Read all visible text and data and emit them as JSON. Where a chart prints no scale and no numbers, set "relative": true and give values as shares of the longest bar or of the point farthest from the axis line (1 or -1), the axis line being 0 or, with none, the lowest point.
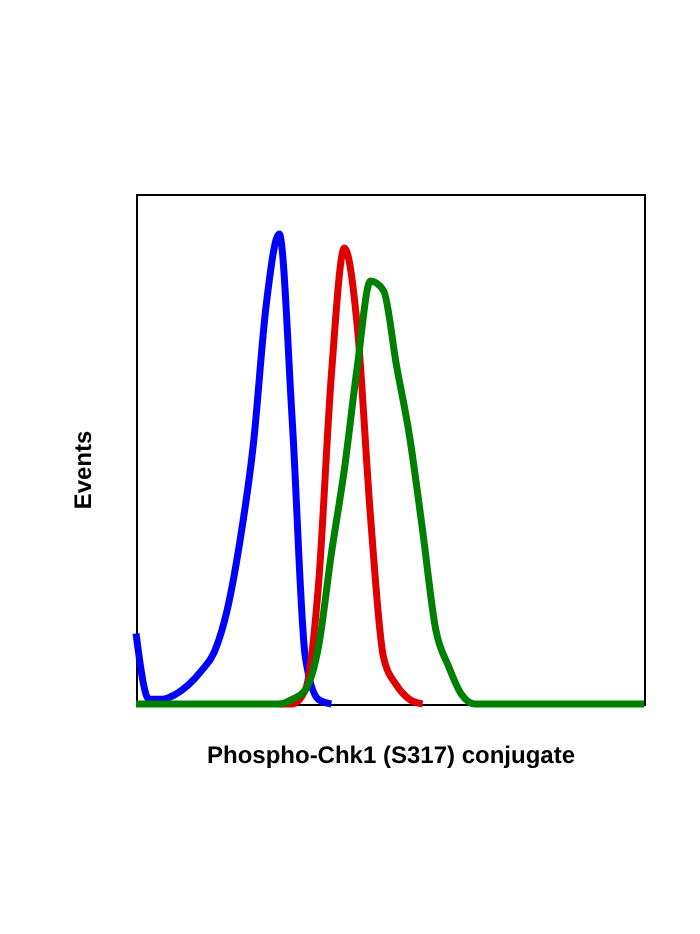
{
  "chart_data": {
    "type": "line",
    "relative": true,
    "xlabel": "Phospho-Chk1 (S317) conjugate",
    "ylabel": "Events",
    "grid": false,
    "legend": false,
    "marker": "none",
    "line_style": "solid",
    "categories": [
      null,
      null,
      null,
      null,
      null,
      null,
      null,
      null,
      null,
      null,
      null,
      null,
      null,
      null,
      null,
      null,
      null,
      null,
      null,
      null,
      null,
      null,
      null,
      null,
      null,
      null,
      null,
      null,
      null,
      null,
      null,
      null,
      null,
      null,
      null,
      null,
      null,
      null,
      null,
      null
    ],
    "series": [
      {
        "color": "#0000ff",
        "values": [
          0.15,
          0.01,
          0.01,
          0.02,
          0.04,
          0.07,
          0.11,
          0.2,
          0.35,
          0.55,
          0.85,
          1,
          0.6,
          0.1,
          0.01,
          0,
          null,
          null,
          null,
          null,
          null,
          null,
          null,
          null,
          null,
          null,
          null,
          null,
          null,
          null,
          null,
          null,
          null,
          null,
          null,
          null,
          null,
          null,
          null,
          null
        ]
      },
      {
        "color": "#e00000",
        "values": [
          null,
          null,
          null,
          null,
          null,
          null,
          null,
          null,
          null,
          null,
          null,
          0,
          0,
          0.03,
          0.25,
          0.7,
          0.97,
          0.8,
          0.4,
          0.1,
          0.04,
          0.01,
          0,
          null,
          null,
          null,
          null,
          null,
          null,
          null,
          null,
          null,
          null,
          null,
          null,
          null,
          null,
          null,
          null,
          null
        ]
      },
      {
        "color": "#008000",
        "values": [
          0,
          0,
          0,
          0,
          0,
          0,
          0,
          0,
          0,
          0,
          0,
          0,
          0.01,
          0.03,
          0.12,
          0.32,
          0.5,
          0.72,
          0.9,
          0.88,
          0.72,
          0.57,
          0.37,
          0.16,
          0.08,
          0.02,
          0,
          0,
          0,
          0,
          0,
          0,
          0,
          0,
          0,
          0,
          0,
          0,
          0,
          0
        ]
      }
    ]
  }
}
